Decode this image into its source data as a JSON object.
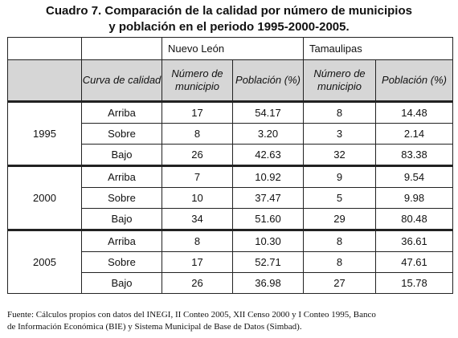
{
  "title": {
    "line1": "Cuadro 7. Comparación de la calidad por número de municipios",
    "line2": "y población en el periodo 1995-2000-2005."
  },
  "table": {
    "groups": [
      "Nuevo León",
      "Tamaulipas"
    ],
    "sub_headers": {
      "curva": "Curva de calidad",
      "nl_num": "Número de municipio",
      "nl_pob": "Población (%)",
      "ta_num": "Número de municipio",
      "ta_pob": "Población (%)"
    },
    "years": [
      {
        "year": "1995",
        "rows": [
          {
            "curva": "Arriba",
            "nl_num": "17",
            "nl_pob": "54.17",
            "ta_num": "8",
            "ta_pob": "14.48"
          },
          {
            "curva": "Sobre",
            "nl_num": "8",
            "nl_pob": "3.20",
            "ta_num": "3",
            "ta_pob": "2.14"
          },
          {
            "curva": "Bajo",
            "nl_num": "26",
            "nl_pob": "42.63",
            "ta_num": "32",
            "ta_pob": "83.38"
          }
        ]
      },
      {
        "year": "2000",
        "rows": [
          {
            "curva": "Arriba",
            "nl_num": "7",
            "nl_pob": "10.92",
            "ta_num": "9",
            "ta_pob": "9.54"
          },
          {
            "curva": "Sobre",
            "nl_num": "10",
            "nl_pob": "37.47",
            "ta_num": "5",
            "ta_pob": "9.98"
          },
          {
            "curva": "Bajo",
            "nl_num": "34",
            "nl_pob": "51.60",
            "ta_num": "29",
            "ta_pob": "80.48"
          }
        ]
      },
      {
        "year": "2005",
        "rows": [
          {
            "curva": "Arriba",
            "nl_num": "8",
            "nl_pob": "10.30",
            "ta_num": "8",
            "ta_pob": "36.61"
          },
          {
            "curva": "Sobre",
            "nl_num": "17",
            "nl_pob": "52.71",
            "ta_num": "8",
            "ta_pob": "47.61"
          },
          {
            "curva": "Bajo",
            "nl_num": "26",
            "nl_pob": "36.98",
            "ta_num": "27",
            "ta_pob": "15.78"
          }
        ]
      }
    ]
  },
  "footnote": {
    "line1": "Fuente: Cálculos propios con datos del INEGI, II Conteo 2005, XII Censo 2000 y I Conteo 1995, Banco",
    "line2": "de Información Económica (BIE) y Sistema Municipal de Base de Datos (Simbad)."
  }
}
